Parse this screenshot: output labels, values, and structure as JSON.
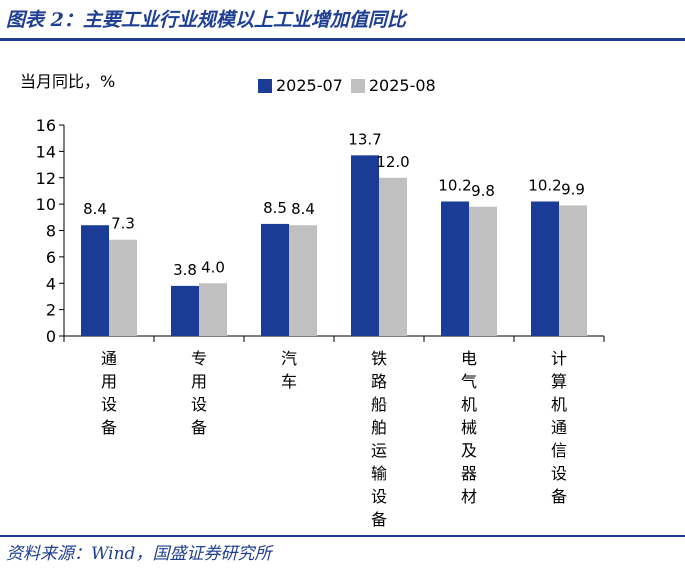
{
  "figure": {
    "title": "图表 2：主要工业行业规模以上工业增加值同比",
    "source": "资料来源：Wind，国盛证券研究所"
  },
  "colors": {
    "accent": "#1f3f93",
    "series1": "#1a3c97",
    "series2": "#c0c0c0"
  },
  "chart_data": {
    "type": "bar",
    "ylabel": "当月同比，%",
    "ylim": [
      0,
      16
    ],
    "yticks": [
      0,
      2,
      4,
      6,
      8,
      10,
      12,
      14,
      16
    ],
    "grid": false,
    "legend_position": "top",
    "categories": [
      "通用设备",
      "专用设备",
      "汽车",
      "铁路船舶运输设备",
      "电气机械及器材",
      "计算机通信设备"
    ],
    "series": [
      {
        "name": "2025-07",
        "values": [
          8.4,
          3.8,
          8.5,
          13.7,
          10.2,
          10.2
        ]
      },
      {
        "name": "2025-08",
        "values": [
          7.3,
          4.0,
          8.4,
          12.0,
          9.8,
          9.9
        ]
      }
    ]
  }
}
